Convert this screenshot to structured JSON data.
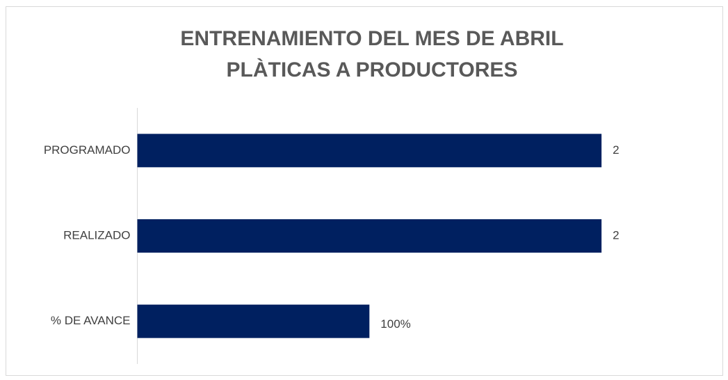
{
  "chart_data": {
    "type": "barh",
    "title": [
      "ENTRENAMIENTO DEL MES DE ABRIL",
      "PLÀTICAS A PRODUCTORES"
    ],
    "categories": [
      "PROGRAMADO",
      "REALIZADO",
      "% DE AVANCE"
    ],
    "values": [
      2,
      2,
      1
    ],
    "value_labels": [
      "2",
      "2",
      "100%"
    ],
    "color": "#002060",
    "xlim": [
      0,
      2.5
    ]
  }
}
